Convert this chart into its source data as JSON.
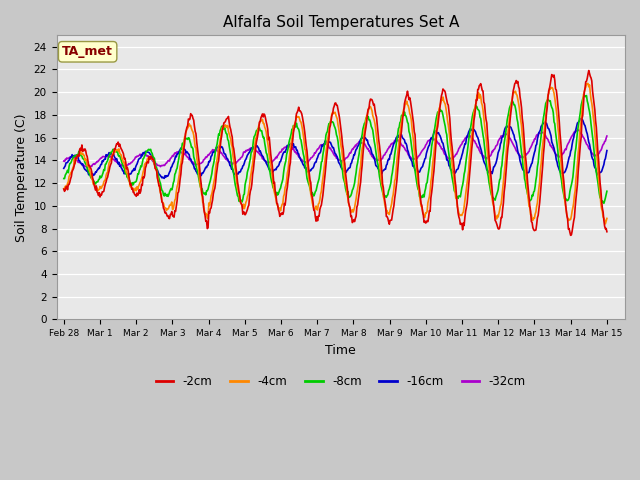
{
  "title": "Alfalfa Soil Temperatures Set A",
  "xlabel": "Time",
  "ylabel": "Soil Temperature (C)",
  "ylim": [
    0,
    25
  ],
  "yticks": [
    0,
    2,
    4,
    6,
    8,
    10,
    12,
    14,
    16,
    18,
    20,
    22,
    24
  ],
  "background_color": "#e8e8e8",
  "grid_color": "#ffffff",
  "annotation_text": "TA_met",
  "annotation_bg": "#ffffcc",
  "annotation_fg": "#880000",
  "series": {
    "-2cm": {
      "color": "#dd0000",
      "lw": 1.2
    },
    "-4cm": {
      "color": "#ff8800",
      "lw": 1.2
    },
    "-8cm": {
      "color": "#00cc00",
      "lw": 1.2
    },
    "-16cm": {
      "color": "#0000cc",
      "lw": 1.2
    },
    "-32cm": {
      "color": "#aa00cc",
      "lw": 1.2
    }
  },
  "x_tick_labels": [
    "Feb 28",
    "Mar 1",
    "Mar 2",
    "Mar 3",
    "Mar 4",
    "Mar 5",
    "Mar 6",
    "Mar 7",
    "Mar 8",
    "Mar 9",
    "Mar 10",
    "Mar 11",
    "Mar 12",
    "Mar 13",
    "Mar 14",
    "Mar 15"
  ],
  "fig_width": 6.4,
  "fig_height": 4.8,
  "fig_dpi": 100
}
